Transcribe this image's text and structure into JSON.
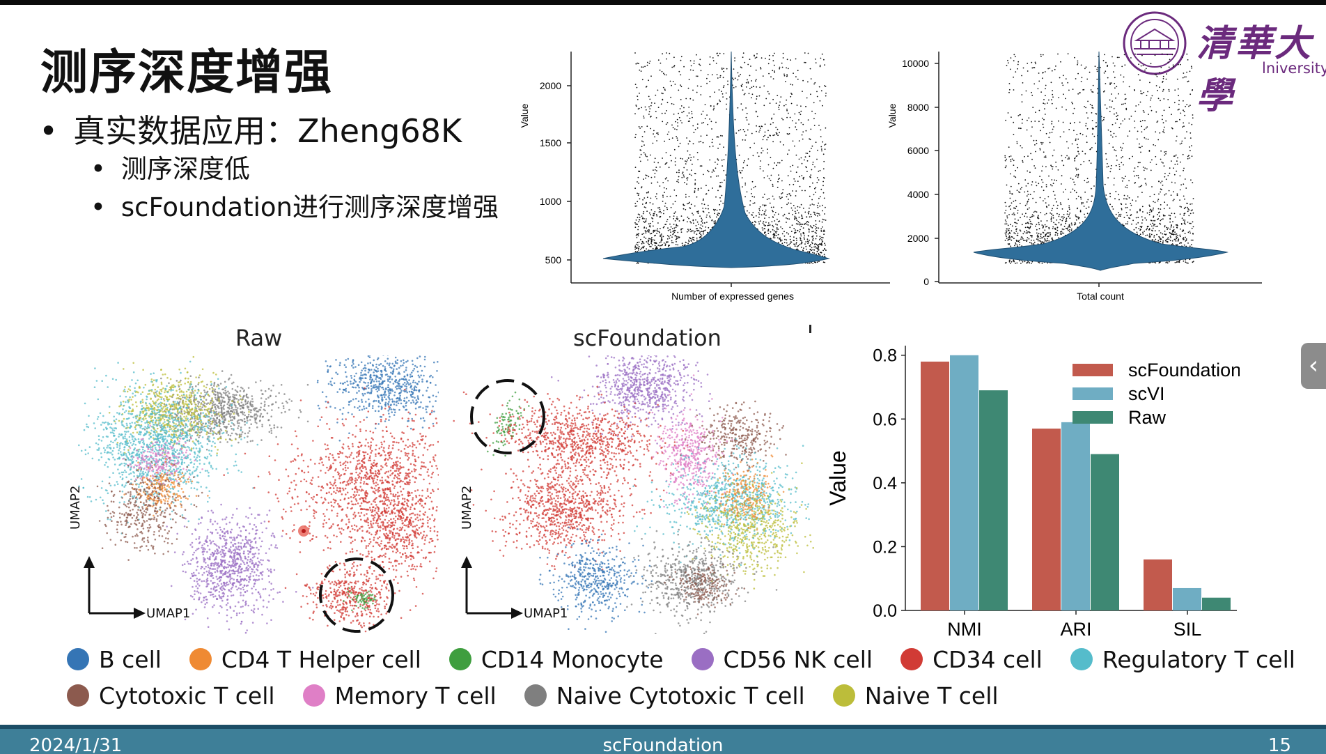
{
  "slide": {
    "title": "测序深度增强",
    "bullets": [
      {
        "text": "真实数据应用：Zheng68K",
        "level": 1
      },
      {
        "text": "测序深度低",
        "level": 2
      },
      {
        "text": "scFoundation进行测序深度增强",
        "level": 2
      }
    ],
    "logo": {
      "main": "清華大學",
      "sub": "lniversity"
    },
    "footer": {
      "date": "2024/1/31",
      "center": "scFoundation",
      "page": "15"
    },
    "side_handle_icon": "chevron-left-icon"
  },
  "violins": [
    {
      "xlabel": "Number of expressed genes",
      "ylabel": "Value",
      "yticks": [
        "500",
        "1000",
        "1500",
        "2000"
      ]
    },
    {
      "xlabel": "Total count",
      "ylabel": "Value",
      "yticks": [
        "0",
        "2000",
        "4000",
        "6000",
        "8000",
        "10000"
      ]
    }
  ],
  "umaps": [
    {
      "title": "Raw",
      "xaxis": "UMAP1",
      "yaxis": "UMAP2"
    },
    {
      "title": "scFoundation",
      "xaxis": "UMAP1",
      "yaxis": "UMAP2"
    }
  ],
  "cell_legend": [
    {
      "label": "B cell",
      "color": "#3575b5"
    },
    {
      "label": "CD4 T Helper cell",
      "color": "#ef8a33"
    },
    {
      "label": "CD14 Monocyte",
      "color": "#3f9e3f"
    },
    {
      "label": "CD56 NK cell",
      "color": "#9a6ec3"
    },
    {
      "label": "CD34 cell",
      "color": "#d13b35"
    },
    {
      "label": "Regulatory T cell",
      "color": "#55bccb"
    },
    {
      "label": "Cytotoxic T cell",
      "color": "#8c5a4e"
    },
    {
      "label": "Memory T cell",
      "color": "#df7fc6"
    },
    {
      "label": "Naive Cytotoxic T cell",
      "color": "#7f7f7f"
    },
    {
      "label": "Naive T cell",
      "color": "#bcbd3a"
    }
  ],
  "chart_data": {
    "type": "bar",
    "categories": [
      "NMI",
      "ARI",
      "SIL"
    ],
    "series": [
      {
        "name": "scFoundation",
        "color": "#c25a4d",
        "values": [
          0.78,
          0.57,
          0.16
        ]
      },
      {
        "name": "scVI",
        "color": "#6fadc3",
        "values": [
          0.8,
          0.59,
          0.07
        ]
      },
      {
        "name": "Raw",
        "color": "#3e8873",
        "values": [
          0.69,
          0.49,
          0.04
        ]
      }
    ],
    "ylabel": "Value",
    "ylim": [
      0,
      0.83
    ],
    "yticks": [
      "0.0",
      "0.2",
      "0.4",
      "0.6",
      "0.8"
    ],
    "legend": "top-right",
    "grid": false
  }
}
